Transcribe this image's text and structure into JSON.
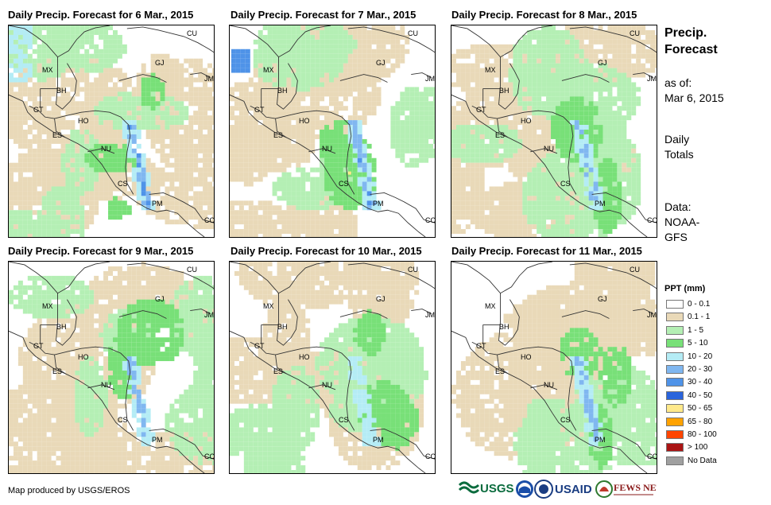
{
  "panels": [
    {
      "title": "Daily Precip. Forecast for 6 Mar., 2015",
      "seed": 6
    },
    {
      "title": "Daily Precip. Forecast for 7 Mar., 2015",
      "seed": 7
    },
    {
      "title": "Daily Precip. Forecast for 8 Mar., 2015",
      "seed": 8
    },
    {
      "title": "Daily Precip. Forecast for 9 Mar., 2015",
      "seed": 9
    },
    {
      "title": "Daily Precip. Forecast for 10 Mar., 2015",
      "seed": 10
    },
    {
      "title": "Daily Precip. Forecast for 11 Mar., 2015",
      "seed": 11
    }
  ],
  "country_labels": [
    "CU",
    "GJ",
    "JM",
    "MX",
    "BH",
    "GT",
    "HO",
    "ES",
    "NU",
    "CS",
    "PM",
    "CO"
  ],
  "side": {
    "title_line1": "Precip.",
    "title_line2": "Forecast",
    "asof_label": "as of:",
    "asof_date": "Mar 6, 2015",
    "period_line1": "Daily",
    "period_line2": "Totals",
    "data_label": "Data:",
    "data_source_line1": "NOAA-",
    "data_source_line2": "GFS"
  },
  "legend": {
    "title": "PPT (mm)",
    "items": [
      {
        "label": "0 - 0.1",
        "color": "#ffffff"
      },
      {
        "label": "0.1 - 1",
        "color": "#e9d9b8"
      },
      {
        "label": "1 - 5",
        "color": "#b4efb4"
      },
      {
        "label": "5 - 10",
        "color": "#78e078"
      },
      {
        "label": "10 - 20",
        "color": "#b4ecf5"
      },
      {
        "label": "20 - 30",
        "color": "#80b7f0"
      },
      {
        "label": "30 - 40",
        "color": "#4f93e8"
      },
      {
        "label": "40 - 50",
        "color": "#2a64dc"
      },
      {
        "label": "50 - 65",
        "color": "#ffe98a"
      },
      {
        "label": "65 - 80",
        "color": "#ffa200"
      },
      {
        "label": "80 - 100",
        "color": "#ff4500"
      },
      {
        "label": "> 100",
        "color": "#aa1414"
      },
      {
        "label": "No Data",
        "color": "#a0a0a0"
      }
    ]
  },
  "footer": {
    "credit": "Map produced by USGS/EROS"
  },
  "logos": {
    "usgs": "USGS",
    "usaid": "USAID",
    "fewsnet": "FEWS NET"
  }
}
